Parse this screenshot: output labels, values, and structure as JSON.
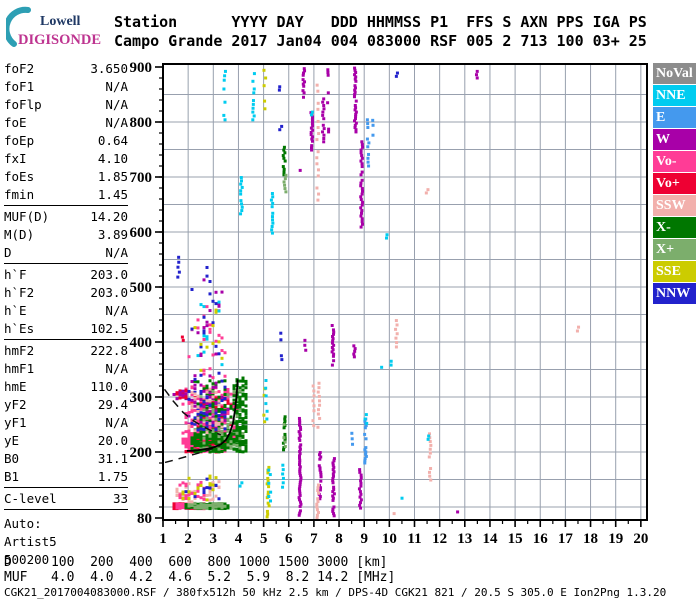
{
  "logo": {
    "line1": "Lowell",
    "line2": "DIGISONDE",
    "arc_color": "#2D9FB4",
    "lowell_color": "#1F3864",
    "digisonde_color": "#BE3490"
  },
  "header": {
    "row1": "Station      YYYY DAY   DDD HHMMSS P1  FFS S AXN PPS IGA PS",
    "row2": "Campo Grande 2017 Jan04 004 083000 RSF 005 2 713 100 03+ 25"
  },
  "params": {
    "groups": [
      [
        [
          "foF2",
          "3.650"
        ],
        [
          "foF1",
          "N/A"
        ],
        [
          "foFlp",
          "N/A"
        ],
        [
          "foE",
          "N/A"
        ],
        [
          "foEp",
          "0.64"
        ],
        [
          "fxI",
          "4.10"
        ],
        [
          "foEs",
          "1.85"
        ],
        [
          "fmin",
          "1.45"
        ]
      ],
      [
        [
          "MUF(D)",
          "14.20"
        ],
        [
          "M(D)",
          "3.89"
        ],
        [
          "D",
          "N/A"
        ]
      ],
      [
        [
          "h`F",
          "203.0"
        ],
        [
          "h`F2",
          "203.0"
        ],
        [
          "h`E",
          "N/A"
        ],
        [
          "h`Es",
          "102.5"
        ]
      ],
      [
        [
          "hmF2",
          "222.8"
        ],
        [
          "hmF1",
          "N/A"
        ],
        [
          "hmE",
          "110.0"
        ],
        [
          "yF2",
          "29.4"
        ],
        [
          "yF1",
          "N/A"
        ],
        [
          "yE",
          "20.0"
        ],
        [
          "B0",
          "31.1"
        ],
        [
          "B1",
          "1.75"
        ]
      ],
      [
        [
          "C-level",
          "33"
        ]
      ]
    ],
    "auto_lines": [
      "Auto:",
      "Artist5",
      "500200"
    ]
  },
  "footer": {
    "d_row": "D     100  200  400  600  800 1000 1500 3000 [km]",
    "muf_row": "MUF   4.0  4.0  4.2  4.6  5.2  5.9  8.2 14.2 [MHz]",
    "status": "CGK21_2017004083000.RSF / 380fx512h 50 kHz 2.5 km / DPS-4D CGK21 821 / 20.5 S 305.0 E Ion2Png 1.3.20"
  },
  "chart_data": {
    "type": "scatter",
    "x_axis": {
      "label": "[MHz]",
      "min": 1,
      "max": 20,
      "ticks": [
        1,
        2,
        3,
        4,
        5,
        6,
        7,
        8,
        9,
        10,
        11,
        12,
        13,
        14,
        15,
        16,
        17,
        18,
        19,
        20
      ],
      "minor_step": 0.5
    },
    "y_axis": {
      "label": "[km]",
      "min": 80,
      "max": 900,
      "tick_labels": [
        900,
        800,
        700,
        600,
        500,
        400,
        300,
        200,
        80
      ],
      "minor_step": 20,
      "grid_step_km": 50
    },
    "grid_color": "#98A0AE",
    "legend": [
      {
        "label": "NoVal",
        "color": "#8C8C8C"
      },
      {
        "label": "NNE",
        "color": "#00CCF0"
      },
      {
        "label": "E",
        "color": "#4499EE"
      },
      {
        "label": "W",
        "color": "#A800A8"
      },
      {
        "label": "Vo-",
        "color": "#FF3C96"
      },
      {
        "label": "Vo+",
        "color": "#EE0033"
      },
      {
        "label": "SSW",
        "color": "#F2B0AC"
      },
      {
        "label": "X-",
        "color": "#007700"
      },
      {
        "label": "X+",
        "color": "#7CAE6C"
      },
      {
        "label": "SSE",
        "color": "#CCCC00"
      },
      {
        "label": "NNW",
        "color": "#2222CC"
      }
    ],
    "traces": {
      "autoscaled_hf": [
        [
          1.95,
          202
        ],
        [
          2.2,
          202
        ],
        [
          2.5,
          204
        ],
        [
          2.8,
          206
        ],
        [
          3.05,
          209
        ],
        [
          3.3,
          214
        ],
        [
          3.5,
          222
        ],
        [
          3.65,
          234
        ],
        [
          3.78,
          252
        ],
        [
          3.87,
          278
        ],
        [
          3.93,
          305
        ],
        [
          3.97,
          332
        ]
      ],
      "profile_dashed_upper": [
        [
          1.06,
          314
        ],
        [
          1.4,
          293
        ],
        [
          1.8,
          272
        ],
        [
          2.2,
          257
        ],
        [
          2.6,
          246
        ],
        [
          3.0,
          237
        ],
        [
          3.3,
          231
        ]
      ],
      "profile_dashed_lower": [
        [
          1.08,
          181
        ],
        [
          1.5,
          186
        ],
        [
          1.95,
          192
        ],
        [
          2.4,
          198
        ],
        [
          2.85,
          204
        ],
        [
          3.25,
          211
        ]
      ]
    },
    "streaks": [
      {
        "f": 3.45,
        "h1": 804,
        "h2": 895,
        "c": "NNE",
        "s": 8
      },
      {
        "f": 4.6,
        "h1": 804,
        "h2": 890,
        "c": "NNE",
        "s": 7
      },
      {
        "f": 5.05,
        "h1": 810,
        "h2": 900,
        "c": "SSE",
        "s": 14
      },
      {
        "f": 6.6,
        "h1": 845,
        "h2": 903,
        "c": "W",
        "s": 4
      },
      {
        "f": 6.92,
        "h1": 749,
        "h2": 818,
        "c": "W",
        "s": 4
      },
      {
        "f": 6.9,
        "h1": 813,
        "h2": 822,
        "c": "NNE",
        "s": 5
      },
      {
        "f": 7.15,
        "h1": 658,
        "h2": 876,
        "c": "SSW",
        "s": 11
      },
      {
        "f": 7.38,
        "h1": 764,
        "h2": 844,
        "c": "W",
        "s": 6
      },
      {
        "f": 7.58,
        "h1": 885,
        "h2": 903,
        "c": "W",
        "s": 5
      },
      {
        "f": 7.58,
        "h1": 835,
        "h2": 853,
        "c": "W",
        "s": 6
      },
      {
        "f": 7.6,
        "h1": 782,
        "h2": 791,
        "c": "W",
        "s": 5
      },
      {
        "f": 8.65,
        "h1": 778,
        "h2": 903,
        "c": "W",
        "s": 4
      },
      {
        "f": 8.9,
        "h1": 609,
        "h2": 767,
        "c": "W",
        "s": 5
      },
      {
        "f": 9.15,
        "h1": 713,
        "h2": 804,
        "c": "E",
        "s": 7
      },
      {
        "f": 9.35,
        "h1": 776,
        "h2": 804,
        "c": "E",
        "s": 9
      },
      {
        "f": 4.12,
        "h1": 627,
        "h2": 704,
        "c": "NNE",
        "s": 6
      },
      {
        "f": 5.35,
        "h1": 598,
        "h2": 680,
        "c": "NNE",
        "s": 6
      },
      {
        "f": 5.82,
        "h1": 704,
        "h2": 758,
        "c": "X-",
        "s": 5
      },
      {
        "f": 5.85,
        "h1": 673,
        "h2": 705,
        "c": "X+",
        "s": 6
      },
      {
        "f": 6.45,
        "h1": 712,
        "h2": 720,
        "c": "W",
        "s": 6
      },
      {
        "f": 11.5,
        "h1": 671,
        "h2": 682,
        "c": "SSW",
        "s": 6
      },
      {
        "f": 10.3,
        "h1": 883,
        "h2": 890,
        "c": "NNW",
        "s": 6
      },
      {
        "f": 13.5,
        "h1": 880,
        "h2": 892,
        "c": "W",
        "s": 6
      },
      {
        "f": 5.65,
        "h1": 858,
        "h2": 866,
        "c": "NNW",
        "s": 6
      },
      {
        "f": 5.68,
        "h1": 786,
        "h2": 793,
        "c": "NNW",
        "s": 6
      },
      {
        "f": 9.9,
        "h1": 589,
        "h2": 597,
        "c": "NNE",
        "s": 6
      },
      {
        "f": 17.5,
        "h1": 420,
        "h2": 428,
        "c": "SSW",
        "s": 7
      },
      {
        "f": 1.62,
        "h1": 500,
        "h2": 555,
        "c": "NNW",
        "s": 9
      },
      {
        "f": 1.78,
        "h1": 403,
        "h2": 410,
        "c": "Vo+",
        "s": 6
      },
      {
        "f": 5.7,
        "h1": 404,
        "h2": 418,
        "c": "NNW",
        "s": 6
      },
      {
        "f": 5.72,
        "h1": 368,
        "h2": 380,
        "c": "NNW",
        "s": 7
      },
      {
        "f": 6.65,
        "h1": 385,
        "h2": 409,
        "c": "W",
        "s": 9
      },
      {
        "f": 7.76,
        "h1": 358,
        "h2": 430,
        "c": "W",
        "s": 4
      },
      {
        "f": 8.62,
        "h1": 373,
        "h2": 395,
        "c": "W",
        "s": 5
      },
      {
        "f": 10.28,
        "h1": 391,
        "h2": 444,
        "c": "SSW",
        "s": 8
      },
      {
        "f": 10.1,
        "h1": 358,
        "h2": 366,
        "c": "NNE",
        "s": 7
      },
      {
        "f": 9.7,
        "h1": 347,
        "h2": 354,
        "c": "NNE",
        "s": 7
      },
      {
        "f": 5.02,
        "h1": 255,
        "h2": 345,
        "c": "SSE",
        "s": 12
      },
      {
        "f": 5.1,
        "h1": 260,
        "h2": 338,
        "c": "NNE",
        "s": 14
      },
      {
        "f": 6.98,
        "h1": 248,
        "h2": 330,
        "c": "SSW",
        "s": 9
      },
      {
        "f": 7.2,
        "h1": 245,
        "h2": 328,
        "c": "SSW",
        "s": 8
      },
      {
        "f": 5.18,
        "h1": 82,
        "h2": 180,
        "c": "SSE",
        "s": 5
      },
      {
        "f": 5.24,
        "h1": 95,
        "h2": 168,
        "c": "NNE",
        "s": 8
      },
      {
        "f": 5.82,
        "h1": 204,
        "h2": 264,
        "c": "X-",
        "s": 4
      },
      {
        "f": 5.84,
        "h1": 210,
        "h2": 256,
        "c": "X+",
        "s": 8
      },
      {
        "f": 5.78,
        "h1": 136,
        "h2": 180,
        "c": "NNE",
        "s": 8
      },
      {
        "f": 6.45,
        "h1": 85,
        "h2": 267,
        "c": "W",
        "s": 4
      },
      {
        "f": 7.25,
        "h1": 115,
        "h2": 200,
        "c": "W",
        "s": 4
      },
      {
        "f": 7.15,
        "h1": 80,
        "h2": 145,
        "c": "SSW",
        "s": 5
      },
      {
        "f": 7.78,
        "h1": 84,
        "h2": 190,
        "c": "W",
        "s": 4
      },
      {
        "f": 8.85,
        "h1": 98,
        "h2": 170,
        "c": "W",
        "s": 5
      },
      {
        "f": 9.05,
        "h1": 176,
        "h2": 262,
        "c": "E",
        "s": 4
      },
      {
        "f": 9.07,
        "h1": 252,
        "h2": 270,
        "c": "NNE",
        "s": 8
      },
      {
        "f": 8.52,
        "h1": 214,
        "h2": 238,
        "c": "E",
        "s": 10
      },
      {
        "f": 11.62,
        "h1": 149,
        "h2": 235,
        "c": "SSW",
        "s": 7
      },
      {
        "f": 11.55,
        "h1": 223,
        "h2": 230,
        "c": "NNE",
        "s": 6
      },
      {
        "f": 10.5,
        "h1": 110,
        "h2": 118,
        "c": "NNE",
        "s": 6
      },
      {
        "f": 10.2,
        "h1": 88,
        "h2": 98,
        "c": "SSW",
        "s": 6
      },
      {
        "f": 12.7,
        "h1": 86,
        "h2": 94,
        "c": "W",
        "s": 5
      },
      {
        "f": 4.1,
        "h1": 138,
        "h2": 146,
        "c": "NNE",
        "s": 6
      }
    ],
    "clusters": [
      {
        "f1": 1.9,
        "f2": 3.35,
        "h1": 200,
        "h2": 216,
        "n": 130,
        "c": "Vo+"
      },
      {
        "f1": 1.85,
        "f2": 3.5,
        "h1": 200,
        "h2": 224,
        "n": 160,
        "c": "Vo-"
      },
      {
        "f1": 1.8,
        "f2": 3.9,
        "h1": 216,
        "h2": 320,
        "n": 320,
        "c": "Vo-",
        "b": 1.9
      },
      {
        "f1": 2.2,
        "f2": 3.8,
        "h1": 214,
        "h2": 300,
        "n": 90,
        "c": "Vo+",
        "b": 2
      },
      {
        "f1": 2.1,
        "f2": 4.3,
        "h1": 200,
        "h2": 232,
        "n": 150,
        "c": "X-"
      },
      {
        "f1": 2.3,
        "f2": 4.25,
        "h1": 226,
        "h2": 330,
        "n": 190,
        "c": "X-",
        "b": 1.8
      },
      {
        "f1": 3.85,
        "f2": 4.35,
        "h1": 210,
        "h2": 335,
        "n": 100,
        "c": "X-"
      },
      {
        "f1": 2.5,
        "f2": 4.2,
        "h1": 205,
        "h2": 320,
        "n": 65,
        "c": "X+",
        "b": 1.5
      },
      {
        "f1": 1.95,
        "f2": 3.7,
        "h1": 245,
        "h2": 340,
        "n": 55,
        "c": "W",
        "b": 1.4
      },
      {
        "f1": 1.95,
        "f2": 3.6,
        "h1": 240,
        "h2": 335,
        "n": 45,
        "c": "NNW",
        "b": 1.4
      },
      {
        "f1": 2.0,
        "f2": 3.4,
        "h1": 235,
        "h2": 320,
        "n": 30,
        "c": "SSW",
        "b": 1.3
      },
      {
        "f1": 2.0,
        "f2": 3.5,
        "h1": 330,
        "h2": 465,
        "n": 26,
        "c": "Vo-"
      },
      {
        "f1": 2.1,
        "f2": 3.4,
        "h1": 335,
        "h2": 560,
        "n": 18,
        "c": "NNW"
      },
      {
        "f1": 2.2,
        "f2": 3.5,
        "h1": 340,
        "h2": 520,
        "n": 14,
        "c": "W"
      },
      {
        "f1": 2.3,
        "f2": 3.4,
        "h1": 350,
        "h2": 480,
        "n": 10,
        "c": "NNE"
      },
      {
        "f1": 2.2,
        "f2": 3.4,
        "h1": 345,
        "h2": 470,
        "n": 10,
        "c": "SSE"
      },
      {
        "f1": 1.38,
        "f2": 2.7,
        "h1": 97,
        "h2": 106,
        "n": 150,
        "c": "Vo+"
      },
      {
        "f1": 1.5,
        "f2": 2.7,
        "h1": 97,
        "h2": 106,
        "n": 80,
        "c": "Vo-"
      },
      {
        "f1": 1.9,
        "f2": 3.55,
        "h1": 97,
        "h2": 106,
        "n": 140,
        "c": "X-"
      },
      {
        "f1": 2.0,
        "f2": 3.45,
        "h1": 98,
        "h2": 107,
        "n": 55,
        "c": "X+"
      },
      {
        "f1": 1.5,
        "f2": 3.3,
        "h1": 109,
        "h2": 148,
        "n": 40,
        "c": "SSW"
      },
      {
        "f1": 1.7,
        "f2": 3.1,
        "h1": 112,
        "h2": 158,
        "n": 26,
        "c": "SSE"
      },
      {
        "f1": 1.6,
        "f2": 2.9,
        "h1": 110,
        "h2": 145,
        "n": 20,
        "c": "Vo-"
      },
      {
        "f1": 1.9,
        "f2": 3.2,
        "h1": 114,
        "h2": 155,
        "n": 12,
        "c": "NNW"
      },
      {
        "f1": 1.35,
        "f2": 1.95,
        "h1": 293,
        "h2": 315,
        "n": 14,
        "c": "Vo+"
      },
      {
        "f1": 1.4,
        "f2": 1.9,
        "h1": 295,
        "h2": 312,
        "n": 8,
        "c": "W"
      }
    ]
  }
}
